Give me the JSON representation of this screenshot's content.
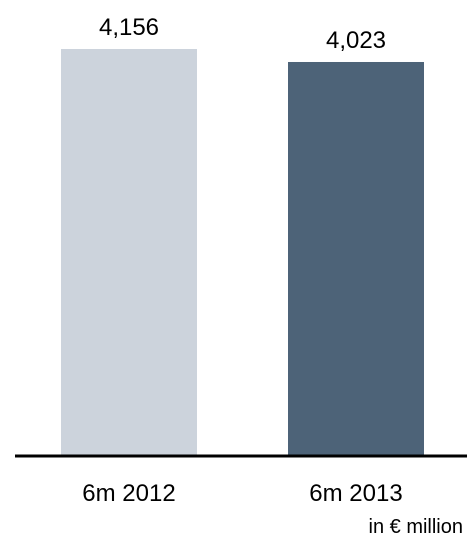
{
  "chart_data": {
    "type": "bar",
    "categories": [
      "6m 2012",
      "6m 2013"
    ],
    "values": [
      4156,
      4023
    ],
    "value_labels": [
      "4,156",
      "4,023"
    ],
    "colors": [
      "#ccd3dc",
      "#4d6378"
    ],
    "ylim": [
      0,
      4156
    ],
    "grid": false,
    "unit_note": "in € million"
  }
}
